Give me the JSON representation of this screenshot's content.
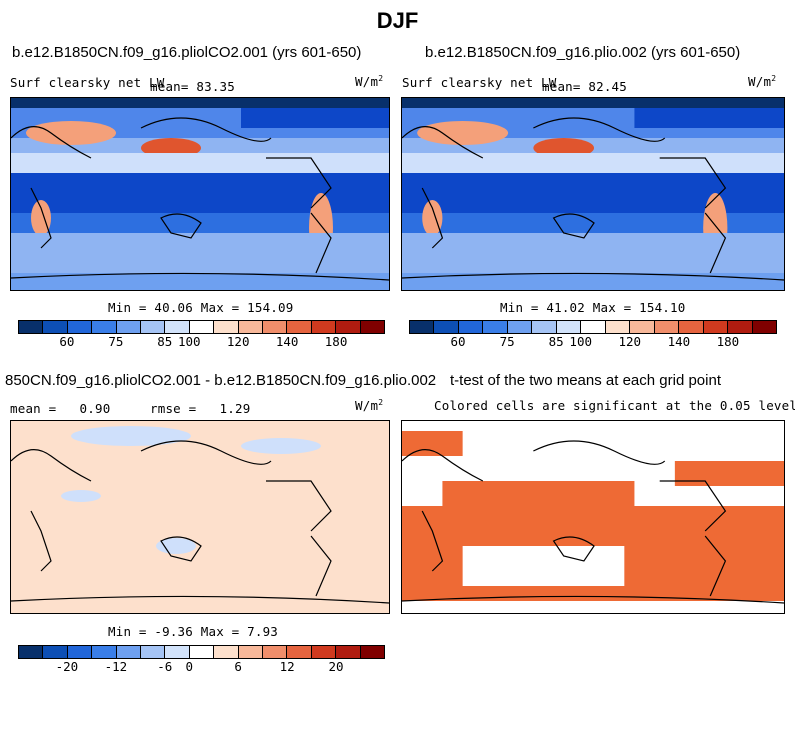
{
  "figure_title": "DJF",
  "panels": {
    "p1": {
      "case": "b.e12.B1850CN.f09_g16.pliolCO2.001 (yrs 601-650)",
      "variable": "Surf clearsky net LW",
      "mean_label": "mean=",
      "mean_value": "83.35",
      "units_base": "W/m",
      "units_exp": "2",
      "min_label": "Min =",
      "min_value": "40.06",
      "max_label": "Max =",
      "max_value": "154.09"
    },
    "p2": {
      "case": "b.e12.B1850CN.f09_g16.plio.002 (yrs 601-650)",
      "variable": "Surf clearsky net LW",
      "mean_label": "mean=",
      "mean_value": "82.45",
      "units_base": "W/m",
      "units_exp": "2",
      "min_label": "Min =",
      "min_value": "41.02",
      "max_label": "Max =",
      "max_value": "154.10"
    },
    "p3": {
      "case": "850CN.f09_g16.pliolCO2.001 - b.e12.B1850CN.f09_g16.plio.002",
      "mean_label": "mean =",
      "mean_value": "0.90",
      "rmse_label": "rmse =",
      "rmse_value": "1.29",
      "units_base": "W/m",
      "units_exp": "2",
      "min_label": "Min =",
      "min_value": "-9.36",
      "max_label": "Max =",
      "max_value": "7.93"
    },
    "p4": {
      "title": "t-test of the two means at each grid point",
      "subtitle": "Colored cells are significant at the 0.05 level"
    }
  },
  "colorbar_abs": {
    "colors": [
      "#08306b",
      "#0d4fb5",
      "#2166d9",
      "#3a7ee8",
      "#6ea0f0",
      "#a5c4f5",
      "#d2e3fb",
      "#ffffff",
      "#fde0cc",
      "#f7b89a",
      "#f08e6b",
      "#e5643f",
      "#d03a1f",
      "#b01c10",
      "#800000"
    ],
    "ticks": [
      "60",
      "75",
      "85",
      "100",
      "120",
      "140",
      "180"
    ]
  },
  "colorbar_diff": {
    "colors": [
      "#08306b",
      "#0d4fb5",
      "#2166d9",
      "#3a7ee8",
      "#6ea0f0",
      "#a5c4f5",
      "#d2e3fb",
      "#ffffff",
      "#fde0cc",
      "#f7b89a",
      "#f08e6b",
      "#e5643f",
      "#d03a1f",
      "#b01c10",
      "#800000"
    ],
    "ticks": [
      "-20",
      "-12",
      "-6",
      "0",
      "6",
      "12",
      "20"
    ]
  },
  "map_colors": {
    "deep_blue": "#0d47c8",
    "mid_blue": "#2d6fe0",
    "light_blue": "#8fb4f2",
    "pale_blue": "#cfe0fb",
    "peach": "#fde0cc",
    "salmon": "#f4a07a",
    "red": "#e0552e",
    "signif": "#ee6a35"
  }
}
